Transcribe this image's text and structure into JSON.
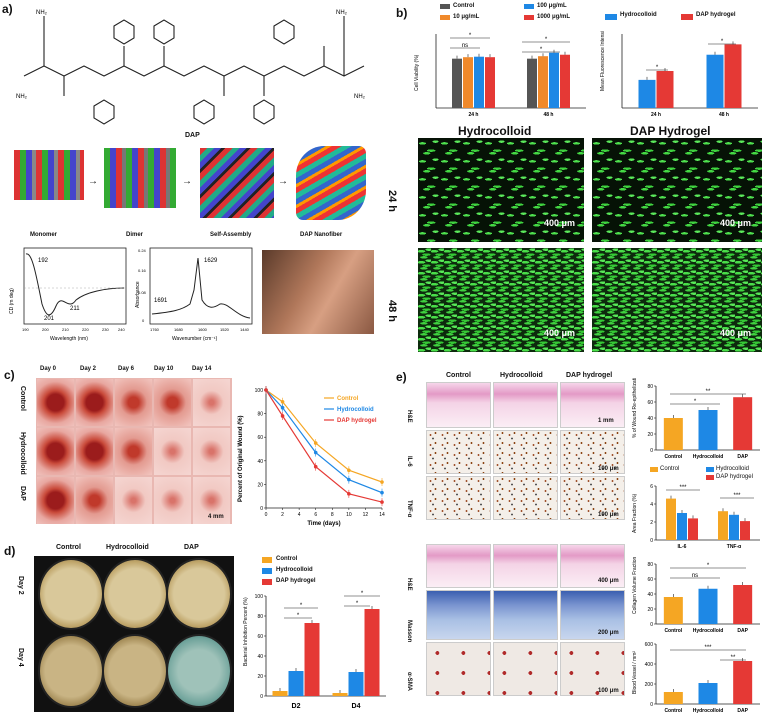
{
  "panels": {
    "a": {
      "label": "a)",
      "molecule_name": "DAP",
      "steps": [
        "Monomer",
        "Dimer",
        "Self-Assembly",
        "DAP Nanofiber"
      ],
      "cd": {
        "ylabel": "CD (m deg)",
        "xlabel": "Wavelength (nm)",
        "peaks": [
          "192",
          "201",
          "211"
        ],
        "ticks": [
          "190",
          "200",
          "210",
          "220",
          "230",
          "240"
        ]
      },
      "ir": {
        "ylabel": "Absorbance",
        "xlabel": "Wavenumber (cm⁻¹)",
        "peaks": [
          "1629",
          "1691"
        ],
        "yticks": [
          "0.24",
          "0.16",
          "0.08",
          "0"
        ],
        "ticks": [
          "1760",
          "1680",
          "1600",
          "1520",
          "1440"
        ]
      }
    },
    "b": {
      "label": "b)",
      "viability_legend": [
        "Control",
        "10 μg/mL",
        "100 μg/mL",
        "1000 μg/mL"
      ],
      "viability_ylabel": "Cell Viability (%)",
      "fluor_legend": [
        "Hydrocolloid",
        "DAP hydrogel"
      ],
      "fluor_ylabel": "Mean Fluorescence Intensi",
      "col_titles": [
        "Hydrocolloid",
        "DAP Hydrogel"
      ],
      "row_titles": [
        "24 h",
        "48 h"
      ],
      "scale": "400 μm"
    },
    "c": {
      "label": "c)",
      "days": [
        "Day 0",
        "Day 2",
        "Day 6",
        "Day 10",
        "Day 14"
      ],
      "rows": [
        "Control",
        "Hydrocolloid",
        "DAP"
      ],
      "scale": "4 mm",
      "ylabel": "Percent of Original Wound (%)",
      "xlabel": "Time (days)"
    },
    "d": {
      "label": "d)",
      "cols": [
        "Control",
        "Hydrocolloid",
        "DAP"
      ],
      "rows": [
        "Day 2",
        "Day 4"
      ],
      "ylabel": "Bacterial Inhibition Percent (%)"
    },
    "e": {
      "label": "e)",
      "cols": [
        "Control",
        "Hydrocolloid",
        "DAP hydrogel"
      ],
      "rows_top": [
        "H&E",
        "IL-6",
        "TNF-α"
      ],
      "rows_bottom": [
        "H&E",
        "Masson",
        "α-SMA"
      ],
      "scales_top": [
        "1 mm",
        "100 μm",
        "100 μm"
      ],
      "scales_bottom": [
        "400 μm",
        "200 μm",
        "100 μm"
      ],
      "charts": [
        {
          "ylabel": "% of Wound Re-epithelization"
        },
        {
          "ylabel": "Area Fraction (%)",
          "legend": [
            "Control",
            "Hydrocolloid",
            "DAP hydrogel"
          ]
        },
        {
          "ylabel": "Collagen Volume Fraction (%)"
        },
        {
          "ylabel": "Blood Vessel / mm²"
        }
      ]
    }
  },
  "colors": {
    "control": "#f5a623",
    "hydro": "#1e88e5",
    "dap": "#e53935",
    "gray": "#555555",
    "orange": "#f0892b"
  },
  "chart_data": [
    {
      "type": "bar",
      "categories": [
        "24 h",
        "48 h"
      ],
      "ylim": [
        0,
        150
      ],
      "series": [
        {
          "name": "Control",
          "values": [
            100,
            100
          ]
        },
        {
          "name": "10 μg/mL",
          "values": [
            103,
            105
          ]
        },
        {
          "name": "100 μg/mL",
          "values": [
            104,
            112
          ]
        },
        {
          "name": "1000 μg/mL",
          "values": [
            103,
            108
          ]
        }
      ]
    },
    {
      "type": "bar",
      "categories": [
        "24 h",
        "48 h"
      ],
      "ylim": [
        0,
        100
      ],
      "series": [
        {
          "name": "Hydrocolloid",
          "values": [
            38,
            72
          ]
        },
        {
          "name": "DAP hydrogel",
          "values": [
            50,
            86
          ]
        }
      ]
    },
    {
      "type": "line",
      "x": [
        0,
        2,
        6,
        10,
        14
      ],
      "ylim": [
        0,
        100
      ],
      "xticks": [
        "0",
        "2",
        "4",
        "6",
        "8",
        "10",
        "12",
        "14"
      ],
      "yticks": [
        "0",
        "20",
        "40",
        "60",
        "80",
        "100"
      ],
      "series": [
        {
          "name": "Control",
          "values": [
            100,
            90,
            55,
            32,
            22
          ]
        },
        {
          "name": "Hydrocolloid",
          "values": [
            100,
            85,
            47,
            24,
            13
          ]
        },
        {
          "name": "DAP hydrogel",
          "values": [
            100,
            78,
            35,
            12,
            5
          ]
        }
      ]
    },
    {
      "type": "bar",
      "categories": [
        "D2",
        "D4"
      ],
      "ylim": [
        0,
        100
      ],
      "yticks": [
        "0",
        "20",
        "40",
        "60",
        "80",
        "100"
      ],
      "series": [
        {
          "name": "Control",
          "values": [
            5,
            3
          ]
        },
        {
          "name": "Hydrocolloid",
          "values": [
            25,
            24
          ]
        },
        {
          "name": "DAP hydrogel",
          "values": [
            73,
            87
          ]
        }
      ]
    },
    {
      "type": "bar",
      "categories": [
        "Control",
        "Hydrocolloid",
        "DAP"
      ],
      "ylim": [
        0,
        80
      ],
      "yticks": [
        "0",
        "20",
        "40",
        "60",
        "80"
      ],
      "values": [
        40,
        50,
        66
      ]
    },
    {
      "type": "bar",
      "categories": [
        "IL-6",
        "TNF-α"
      ],
      "ylim": [
        0,
        6
      ],
      "yticks": [
        "0",
        "2",
        "4",
        "6"
      ],
      "series": [
        {
          "name": "Control",
          "values": [
            4.6,
            3.2
          ]
        },
        {
          "name": "Hydrocolloid",
          "values": [
            3.0,
            2.8
          ]
        },
        {
          "name": "DAP hydrogel",
          "values": [
            2.4,
            2.1
          ]
        }
      ]
    },
    {
      "type": "bar",
      "categories": [
        "Control",
        "Hydrocolloid",
        "DAP"
      ],
      "ylim": [
        0,
        80
      ],
      "yticks": [
        "0",
        "20",
        "40",
        "60",
        "80"
      ],
      "values": [
        36,
        47,
        52
      ]
    },
    {
      "type": "bar",
      "categories": [
        "Control",
        "Hydrocolloid",
        "DAP"
      ],
      "ylim": [
        0,
        600
      ],
      "yticks": [
        "0",
        "200",
        "400",
        "600"
      ],
      "values": [
        120,
        210,
        430
      ]
    }
  ]
}
